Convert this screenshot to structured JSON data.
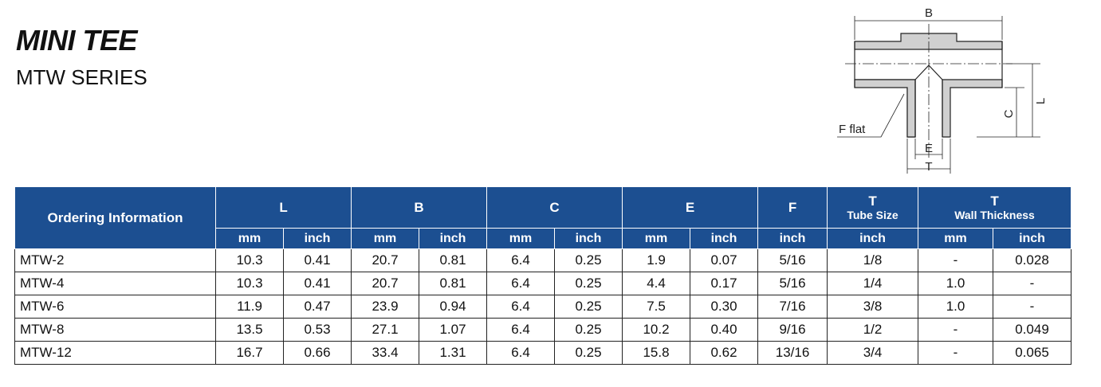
{
  "header": {
    "title": "MINI TEE",
    "subtitle": "MTW SERIES"
  },
  "diagram": {
    "labels": {
      "b": "B",
      "l": "L",
      "c": "C",
      "e": "E",
      "t": "T",
      "flat": "F flat"
    }
  },
  "table": {
    "groups": [
      {
        "label": "Ordering Information"
      },
      {
        "label": "L"
      },
      {
        "label": "B"
      },
      {
        "label": "C"
      },
      {
        "label": "E"
      },
      {
        "label": "F"
      },
      {
        "label": "T",
        "sublabel": "Tube Size"
      },
      {
        "label": "T",
        "sublabel": "Wall Thickness"
      }
    ],
    "subheaders": [
      "mm",
      "inch",
      "mm",
      "inch",
      "mm",
      "inch",
      "mm",
      "inch",
      "inch",
      "inch",
      "mm",
      "inch"
    ],
    "rows": [
      [
        "MTW-2",
        "10.3",
        "0.41",
        "20.7",
        "0.81",
        "6.4",
        "0.25",
        "1.9",
        "0.07",
        "5/16",
        "1/8",
        "-",
        "0.028"
      ],
      [
        "MTW-4",
        "10.3",
        "0.41",
        "20.7",
        "0.81",
        "6.4",
        "0.25",
        "4.4",
        "0.17",
        "5/16",
        "1/4",
        "1.0",
        "-"
      ],
      [
        "MTW-6",
        "11.9",
        "0.47",
        "23.9",
        "0.94",
        "6.4",
        "0.25",
        "7.5",
        "0.30",
        "7/16",
        "3/8",
        "1.0",
        "-"
      ],
      [
        "MTW-8",
        "13.5",
        "0.53",
        "27.1",
        "1.07",
        "6.4",
        "0.25",
        "10.2",
        "0.40",
        "9/16",
        "1/2",
        "-",
        "0.049"
      ],
      [
        "MTW-12",
        "16.7",
        "0.66",
        "33.4",
        "1.31",
        "6.4",
        "0.25",
        "15.8",
        "0.62",
        "13/16",
        "3/4",
        "-",
        "0.065"
      ]
    ]
  }
}
